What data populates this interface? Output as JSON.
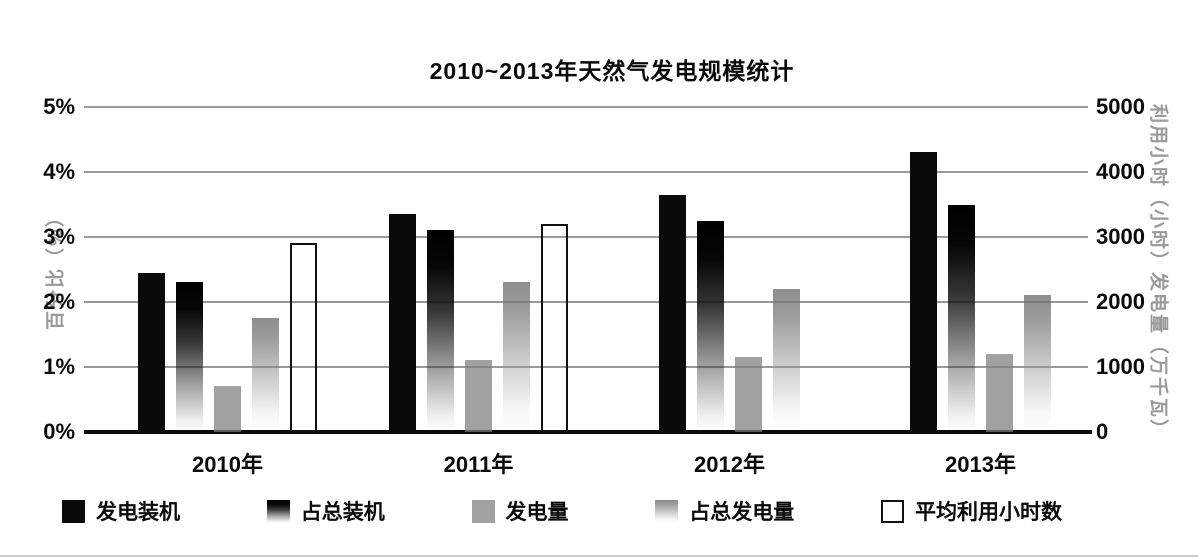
{
  "page": {
    "background": "#ffffff"
  },
  "chart_data": {
    "type": "bar",
    "title": "2010~2013年天然气发电规模统计",
    "categories": [
      "2010年",
      "2011年",
      "2012年",
      "2013年"
    ],
    "left_axis": {
      "title": "百分比（%）",
      "ticks": [
        "5%",
        "4%",
        "3%",
        "2%",
        "1%",
        "0%"
      ],
      "range": [
        0,
        5
      ]
    },
    "right_axis": {
      "title": "利用小时（小时）发电量（万千瓦）",
      "ticks": [
        "5000",
        "4000",
        "3000",
        "2000",
        "1000",
        "0"
      ],
      "range": [
        0,
        5000
      ]
    },
    "series": [
      {
        "name": "发电装机",
        "axis": "left",
        "unit": "%",
        "style": "solid-black",
        "color": "#0a0a0a",
        "values": [
          2.45,
          3.35,
          3.65,
          4.3
        ]
      },
      {
        "name": "占总装机",
        "axis": "left",
        "unit": "%",
        "style": "gradient-black",
        "color": "#0a0a0a",
        "values": [
          2.3,
          3.1,
          3.25,
          3.5
        ]
      },
      {
        "name": "发电量",
        "axis": "right",
        "unit": "万千瓦",
        "style": "solid-gray",
        "color": "#a9a9a9",
        "values": [
          700,
          1100,
          1150,
          1200
        ]
      },
      {
        "name": "占总发电量",
        "axis": "left",
        "unit": "%",
        "style": "gradient-gray",
        "color": "#b3b3b3",
        "values": [
          1.75,
          2.3,
          2.2,
          2.1
        ]
      },
      {
        "name": "平均利用小时数",
        "axis": "right",
        "unit": "小时",
        "style": "outline-white",
        "color": "#ffffff",
        "values": [
          2900,
          3200,
          null,
          null
        ]
      }
    ],
    "grid": true,
    "legend_position": "bottom",
    "colors": {
      "gridline": "#999999",
      "axis_line": "#0a0a0a",
      "axis_title_text": "#9a9a9a",
      "text": "#0a0a0a"
    }
  }
}
